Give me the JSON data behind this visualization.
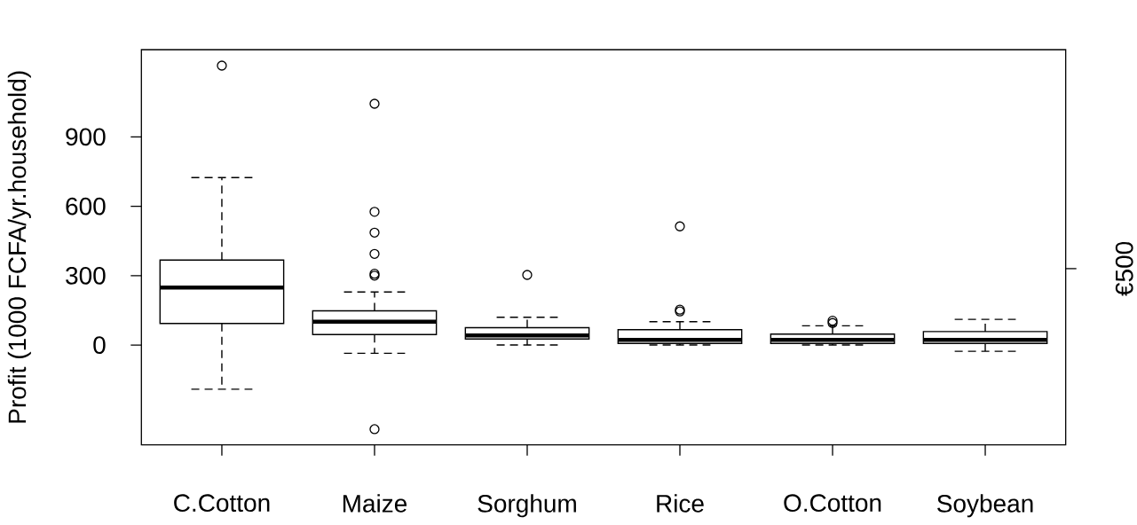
{
  "chart_data": {
    "type": "box",
    "ylabel": "Profit (1000 FCFA/yr.household)",
    "categories": [
      "C.Cotton",
      "Maize",
      "Sorghum",
      "Rice",
      "O.Cotton",
      "Soybean"
    ],
    "boxes": [
      {
        "low": -191,
        "q1": 93,
        "median": 248,
        "q3": 367,
        "high": 724,
        "outliers": [
          1208
        ]
      },
      {
        "low": -36,
        "q1": 45,
        "median": 101,
        "q3": 148,
        "high": 229,
        "outliers": [
          1043,
          576,
          486,
          394,
          308,
          300,
          -364
        ]
      },
      {
        "low": 0,
        "q1": 26,
        "median": 41,
        "q3": 75,
        "high": 120,
        "outliers": [
          303
        ]
      },
      {
        "low": 0,
        "q1": 7,
        "median": 22,
        "q3": 66,
        "high": 101,
        "outliers": [
          513,
          153,
          145
        ]
      },
      {
        "low": 0,
        "q1": 7,
        "median": 22,
        "q3": 47,
        "high": 83,
        "outliers": [
          105,
          95
        ]
      },
      {
        "low": -27,
        "q1": 7,
        "median": 22,
        "q3": 58,
        "high": 111
      }
    ],
    "ylim": [
      -432,
      1277
    ],
    "yticks": [
      0,
      300,
      600,
      900
    ],
    "annotations": [
      "€500"
    ],
    "grid": false
  }
}
